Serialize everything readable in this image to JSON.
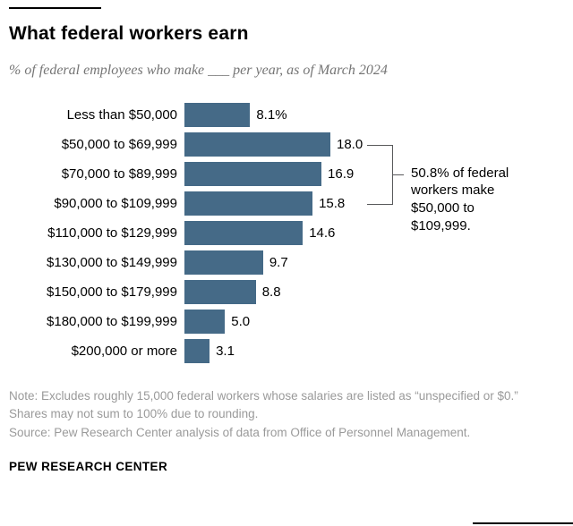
{
  "chart_data": {
    "type": "bar",
    "orientation": "horizontal",
    "title": "What federal workers earn",
    "subtitle": "% of federal employees who make ___ per year, as of March 2024",
    "categories": [
      "Less than $50,000",
      "$50,000 to $69,999",
      "$70,000 to $89,999",
      "$90,000 to $109,999",
      "$110,000 to $129,999",
      "$130,000 to $149,999",
      "$150,000 to $179,999",
      "$180,000 to $199,999",
      "$200,000 or more"
    ],
    "values": [
      8.1,
      18.0,
      16.9,
      15.8,
      14.6,
      9.7,
      8.8,
      5.0,
      3.1
    ],
    "value_labels": [
      "8.1%",
      "18.0",
      "16.9",
      "15.8",
      "14.6",
      "9.7",
      "8.8",
      "5.0",
      "3.1"
    ],
    "xlim": [
      0,
      18
    ],
    "bar_color": "#456a87",
    "annotation": {
      "text": "50.8% of federal workers make $50,000 to $109,999.",
      "from_row": 1,
      "to_row": 3
    },
    "note": "Note: Excludes roughly 15,000 federal workers whose salaries are listed as “unspecified or $0.” Shares may not sum to 100% due to rounding.",
    "source": "Source: Pew Research Center analysis of data from Office of Personnel Management.",
    "footer": "PEW RESEARCH CENTER"
  }
}
